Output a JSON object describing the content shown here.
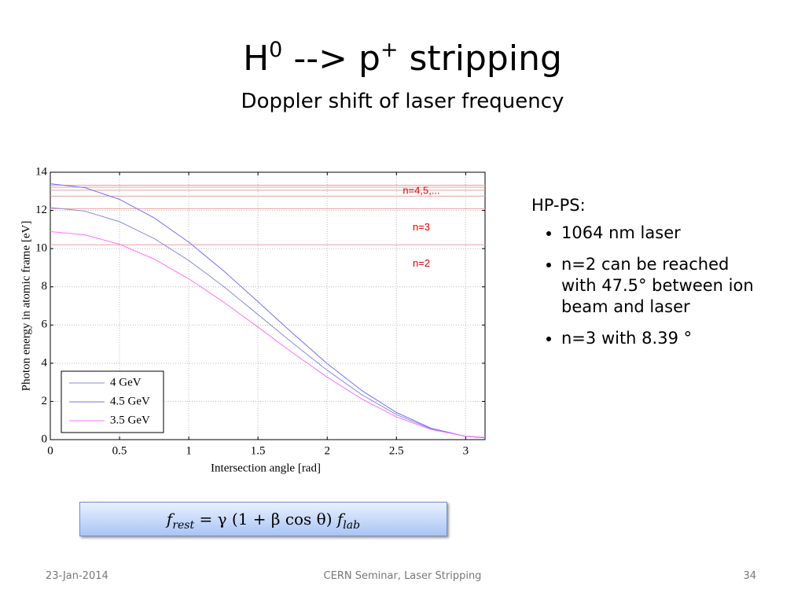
{
  "slide": {
    "title_parts": [
      "H",
      "0",
      " --> p",
      "+",
      " stripping"
    ],
    "subtitle": "Doppler shift of laser frequency",
    "formula_parts": [
      "f",
      "rest",
      " = γ (1 + β cos θ) ",
      "f",
      "lab"
    ],
    "notes_heading": "HP-PS:",
    "bullets": [
      "1064 nm laser",
      "n=2 can be reached with 47.5° between ion beam and laser",
      "n=3 with 8.39 °"
    ],
    "footer_date": "23-Jan-2014",
    "footer_center": "CERN Seminar, Laser Stripping",
    "page_number": "34"
  },
  "chart_data": {
    "type": "line",
    "xlabel": "Intersection angle [rad]",
    "ylabel": "Photon energy in atomic frame [eV]",
    "x": [
      0,
      0.25,
      0.5,
      0.75,
      1,
      1.25,
      1.5,
      1.75,
      2,
      2.25,
      2.5,
      2.75,
      3,
      3.14
    ],
    "series": [
      {
        "name": "4 GeV",
        "color": "#8c8cd9",
        "values": [
          12.15,
          11.96,
          11.41,
          10.53,
          9.38,
          8.03,
          6.55,
          5.06,
          3.63,
          2.35,
          1.31,
          0.57,
          0.17,
          0.11
        ]
      },
      {
        "name": "4.5 GeV",
        "color": "#7070ff",
        "values": [
          13.4,
          13.19,
          12.58,
          11.61,
          10.34,
          8.85,
          7.22,
          5.57,
          3.98,
          2.57,
          1.42,
          0.6,
          0.17,
          0.1
        ]
      },
      {
        "name": "3.5 GeV",
        "color": "#ff70ff",
        "values": [
          10.89,
          10.72,
          10.23,
          9.45,
          8.42,
          7.21,
          5.89,
          4.55,
          3.27,
          2.13,
          1.19,
          0.53,
          0.18,
          0.12
        ]
      }
    ],
    "hlines": [
      10.2,
      12.09,
      12.75,
      13.06,
      13.22,
      13.32
    ],
    "hline_color": "#e8a0a0",
    "annotations": [
      {
        "text": "n=4,5,...",
        "x": 2.68,
        "y": 13.0
      },
      {
        "text": "n=3",
        "x": 2.68,
        "y": 11.1
      },
      {
        "text": "n=2",
        "x": 2.68,
        "y": 9.2
      }
    ],
    "annotation_color": "#e00000",
    "xlim": [
      0,
      3.14
    ],
    "ylim": [
      0,
      14
    ],
    "xticks": [
      0,
      0.5,
      1,
      1.5,
      2,
      2.5,
      3
    ],
    "yticks": [
      0,
      2,
      4,
      6,
      8,
      10,
      12,
      14
    ],
    "grid": true,
    "legend": "lower left"
  }
}
